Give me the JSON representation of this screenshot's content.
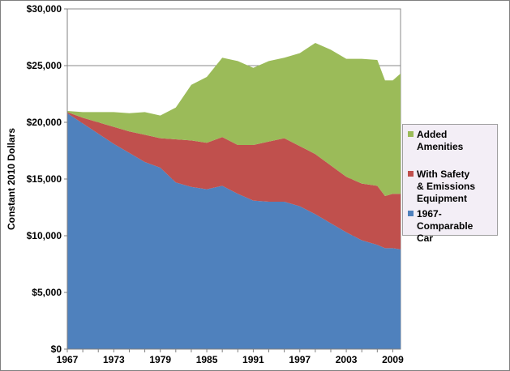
{
  "chart_data": {
    "type": "area",
    "stacked": true,
    "title": "",
    "xlabel": "",
    "ylabel": "Constant 2010 Dollars",
    "ylim": [
      0,
      30000
    ],
    "xlim": [
      1967,
      2010
    ],
    "yticks": [
      "$0",
      "$5,000",
      "$10,000",
      "$15,000",
      "$20,000",
      "$25,000",
      "$30,000"
    ],
    "xticks": [
      "1967",
      "1973",
      "1979",
      "1985",
      "1991",
      "1997",
      "2003",
      "2009"
    ],
    "grid": "horizontal",
    "legend_position": "right",
    "x": [
      1967,
      1969,
      1971,
      1973,
      1975,
      1977,
      1979,
      1981,
      1983,
      1985,
      1987,
      1989,
      1991,
      1993,
      1995,
      1997,
      1999,
      2001,
      2003,
      2005,
      2007,
      2008,
      2009,
      2010
    ],
    "series": [
      {
        "name": "1967-Comparable Car",
        "color": "#4f81bd",
        "values": [
          20800,
          19900,
          19000,
          18100,
          17300,
          16500,
          16000,
          14700,
          14300,
          14100,
          14400,
          13700,
          13100,
          13000,
          13000,
          12600,
          11900,
          11100,
          10300,
          9600,
          9200,
          8900,
          8900,
          8800
        ]
      },
      {
        "name": "With Safety & Emissions Equipment",
        "color": "#c0504d",
        "values": [
          100,
          500,
          1000,
          1500,
          1900,
          2400,
          2600,
          3800,
          4100,
          4100,
          4300,
          4300,
          4900,
          5300,
          5600,
          5300,
          5300,
          5100,
          4900,
          5000,
          5200,
          4600,
          4800,
          4900
        ]
      },
      {
        "name": "Added Amenities",
        "color": "#9bbb59",
        "values": [
          100,
          500,
          900,
          1300,
          1600,
          2000,
          2000,
          2800,
          4900,
          5800,
          7000,
          7400,
          6800,
          7100,
          7100,
          8200,
          9800,
          10200,
          10400,
          11000,
          11100,
          10200,
          10000,
          10600
        ]
      }
    ],
    "legend_order": [
      "Added\nAmenities",
      "With Safety\n& Emissions\nEquipment",
      "1967-Comparable\nCar"
    ]
  }
}
